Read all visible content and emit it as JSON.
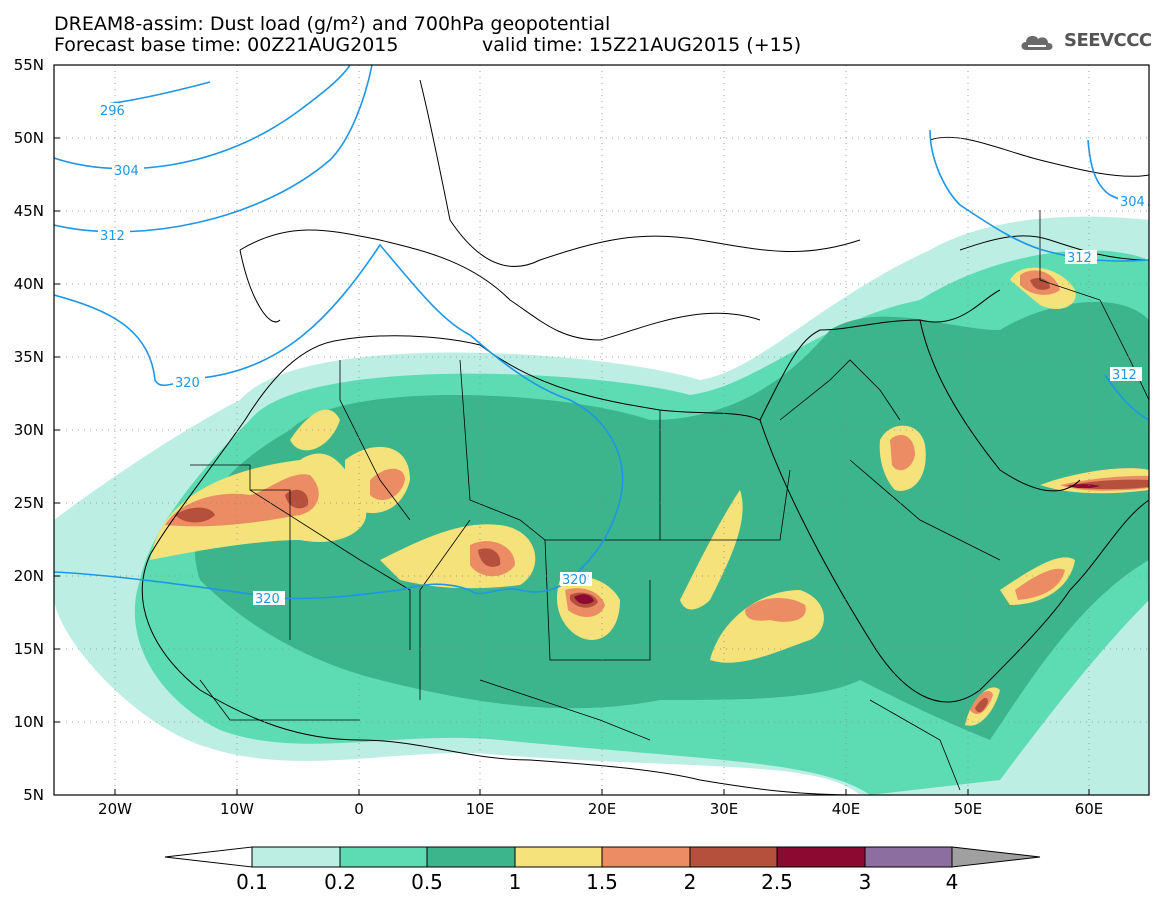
{
  "header": {
    "title": "DREAM8-assim: Dust load (g/m²) and 700hPa geopotential",
    "base_time": "Forecast base time: 00Z21AUG2015",
    "valid_time": "valid time: 15Z21AUG2015 (+15)",
    "logo_text": "SEEVCCC"
  },
  "axes": {
    "lat_labels": [
      "55N",
      "50N",
      "45N",
      "40N",
      "35N",
      "30N",
      "25N",
      "20N",
      "15N",
      "10N",
      "5N"
    ],
    "lon_labels": [
      "20W",
      "10W",
      "0",
      "10E",
      "20E",
      "30E",
      "40E",
      "50E",
      "60E"
    ]
  },
  "contours": {
    "labels": [
      "296",
      "304",
      "312",
      "320",
      "320",
      "320",
      "312",
      "312",
      "304"
    ]
  },
  "colorbar": {
    "labels": [
      "0.1",
      "0.2",
      "0.5",
      "1",
      "1.5",
      "2",
      "2.5",
      "3",
      "4"
    ],
    "colors": [
      "#bdeee4",
      "#5ddcb4",
      "#3cb48c",
      "#f5e27a",
      "#ec8c64",
      "#b4503c",
      "#8c0a32",
      "#8c6ea0",
      "#a0a0a0"
    ]
  },
  "colors": {
    "land_border": "#000000",
    "geopotential_line": "#1e96e6"
  }
}
